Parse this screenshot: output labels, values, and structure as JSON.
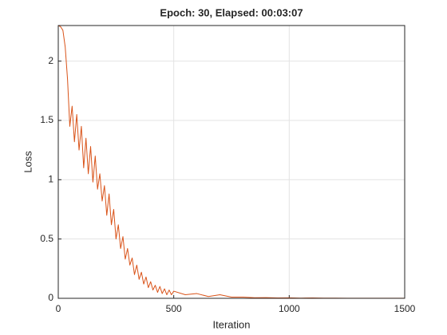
{
  "chart_data": {
    "type": "line",
    "title": "Epoch: 30, Elapsed: 00:03:07",
    "x_label": "Iteration",
    "y_label": "Loss",
    "x": [
      0,
      10,
      20,
      30,
      40,
      50,
      60,
      70,
      80,
      90,
      100,
      110,
      120,
      130,
      140,
      150,
      160,
      170,
      180,
      190,
      200,
      210,
      220,
      230,
      240,
      250,
      260,
      270,
      280,
      290,
      300,
      310,
      320,
      330,
      340,
      350,
      360,
      370,
      380,
      390,
      400,
      410,
      420,
      430,
      440,
      450,
      460,
      470,
      480,
      490,
      500,
      550,
      600,
      650,
      700,
      750,
      800,
      850,
      900,
      950,
      1000,
      1050,
      1100,
      1150,
      1200,
      1250,
      1300,
      1350,
      1400,
      1450,
      1500
    ],
    "values": [
      2.3,
      2.29,
      2.26,
      2.12,
      1.85,
      1.45,
      1.62,
      1.32,
      1.55,
      1.25,
      1.45,
      1.1,
      1.35,
      1.05,
      1.28,
      0.98,
      1.2,
      0.92,
      1.05,
      0.82,
      0.95,
      0.7,
      0.88,
      0.62,
      0.75,
      0.5,
      0.62,
      0.42,
      0.52,
      0.33,
      0.42,
      0.28,
      0.34,
      0.2,
      0.28,
      0.16,
      0.22,
      0.12,
      0.18,
      0.09,
      0.14,
      0.07,
      0.11,
      0.05,
      0.1,
      0.04,
      0.08,
      0.03,
      0.07,
      0.03,
      0.06,
      0.03,
      0.04,
      0.015,
      0.03,
      0.01,
      0.01,
      0.005,
      0.006,
      0.003,
      0.004,
      0.002,
      0.003,
      0.002,
      0.002,
      0.001,
      0.001,
      0.001,
      0.001,
      0.001,
      0.001
    ],
    "color": "#d95319",
    "xlim": [
      0,
      1500
    ],
    "xticks": [
      0,
      500,
      1000,
      1500
    ],
    "ylim": [
      0,
      2.3
    ],
    "yticks": [
      0,
      0.5,
      1,
      1.5,
      2
    ],
    "grid": true
  }
}
